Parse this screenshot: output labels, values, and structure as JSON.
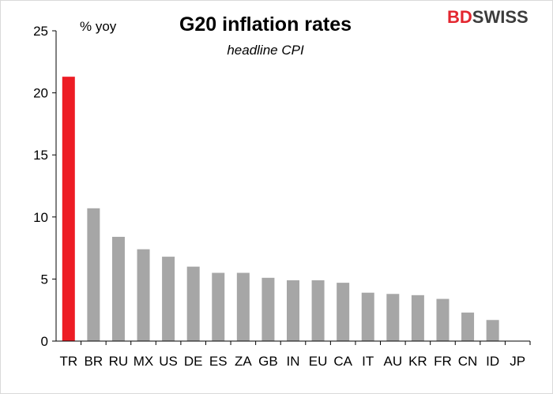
{
  "logo": {
    "part1": "BD",
    "part2": "SWISS",
    "part1_color": "#e3262f",
    "part2_color": "#3c3c3c"
  },
  "chart_data": {
    "type": "bar",
    "title": "G20 inflation rates",
    "subtitle": "headline CPI",
    "unit_label": "% yoy",
    "categories": [
      "TR",
      "BR",
      "RU",
      "MX",
      "US",
      "DE",
      "ES",
      "ZA",
      "GB",
      "IN",
      "EU",
      "CA",
      "IT",
      "AU",
      "KR",
      "FR",
      "CN",
      "ID",
      "JP"
    ],
    "values": [
      21.3,
      10.7,
      8.4,
      7.4,
      6.8,
      6.0,
      5.5,
      5.5,
      5.1,
      4.9,
      4.9,
      4.7,
      3.9,
      3.8,
      3.7,
      3.4,
      2.3,
      1.7,
      0.0
    ],
    "highlight_index": 0,
    "colors": {
      "bar": "#a6a6a6",
      "highlight": "#ed1c24",
      "axis": "#000000"
    },
    "ylim": [
      0,
      25
    ],
    "yticks": [
      0,
      5,
      10,
      15,
      20,
      25
    ],
    "grid": false
  }
}
